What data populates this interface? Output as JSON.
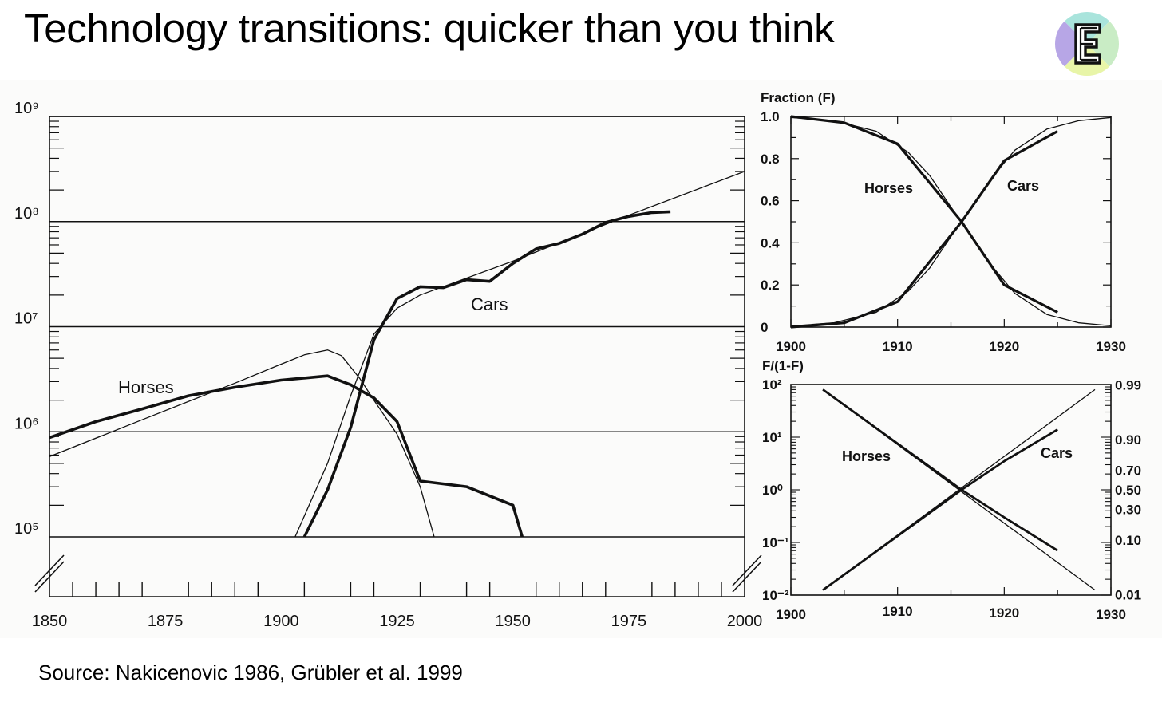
{
  "header": {
    "title": "Technology transitions: quicker than you think"
  },
  "footer": {
    "source": "Source: Nakicenovic 1986, Grübler et al. 1999"
  },
  "logo": {
    "icon": "e-letter-logo-icon",
    "letter": "E",
    "colors": {
      "top": "#a9e4dc",
      "left": "#b7a6e6",
      "right": "#c9ecc5",
      "bottom": "#e8f5a8"
    }
  },
  "chart_data": [
    {
      "type": "line",
      "xlabel": "",
      "ylabel": "",
      "xlim": [
        1850,
        2000
      ],
      "ylim": [
        100000,
        1000000000
      ],
      "yscale": "log",
      "xticks": [
        "1850",
        "1875",
        "1900",
        "1925",
        "1950",
        "1975",
        "2000"
      ],
      "yticks": [
        "10⁹",
        "10⁸",
        "10⁷",
        "10⁶",
        "10⁵"
      ],
      "series": [
        {
          "name": "Horses",
          "style": "data",
          "points": [
            [
              1850,
              880000
            ],
            [
              1860,
              1250000
            ],
            [
              1870,
              1650000
            ],
            [
              1880,
              2200000
            ],
            [
              1890,
              2650000
            ],
            [
              1900,
              3100000
            ],
            [
              1910,
              3400000
            ],
            [
              1915,
              2800000
            ],
            [
              1920,
              2100000
            ],
            [
              1925,
              1250000
            ],
            [
              1930,
              340000
            ],
            [
              1940,
              300000
            ],
            [
              1950,
              200000
            ],
            [
              1952,
              100000
            ]
          ]
        },
        {
          "name": "",
          "style": "fit",
          "points": [
            [
              1850,
              580000
            ],
            [
              1870,
              1300000
            ],
            [
              1890,
              2900000
            ],
            [
              1900,
              4400000
            ],
            [
              1905,
              5400000
            ],
            [
              1910,
              6000000
            ],
            [
              1913,
              5300000
            ],
            [
              1917,
              3200000
            ],
            [
              1920,
              2000000
            ],
            [
              1925,
              950000
            ],
            [
              1930,
              300000
            ],
            [
              1933,
              100000
            ]
          ]
        },
        {
          "name": "Cars",
          "style": "data",
          "points": [
            [
              1905,
              100000
            ],
            [
              1910,
              280000
            ],
            [
              1915,
              1100000
            ],
            [
              1920,
              7500000
            ],
            [
              1925,
              18500000
            ],
            [
              1930,
              24000000
            ],
            [
              1935,
              23500000
            ],
            [
              1940,
              28000000
            ],
            [
              1945,
              27000000
            ],
            [
              1950,
              40000000
            ],
            [
              1955,
              55000000
            ],
            [
              1960,
              62000000
            ],
            [
              1965,
              76000000
            ],
            [
              1970,
              98000000
            ],
            [
              1975,
              112000000
            ],
            [
              1980,
              122000000
            ],
            [
              1984,
              124000000
            ]
          ]
        },
        {
          "name": "",
          "style": "fit",
          "points": [
            [
              1903,
              100000
            ],
            [
              1910,
              500000
            ],
            [
              1915,
              2200000
            ],
            [
              1920,
              8500000
            ],
            [
              1925,
              15000000
            ],
            [
              1930,
              20000000
            ],
            [
              1950,
              42000000
            ],
            [
              1975,
              115000000
            ],
            [
              2000,
              300000000
            ]
          ]
        }
      ]
    },
    {
      "type": "line",
      "title": "Fraction (F)",
      "xlim": [
        1900,
        1930
      ],
      "ylim": [
        0,
        1
      ],
      "xticks": [
        "1900",
        "1910",
        "1920",
        "1930"
      ],
      "yticks": [
        "1.0",
        "0.8",
        "0.6",
        "0.4",
        "0.2",
        "0"
      ],
      "series": [
        {
          "name": "Horses",
          "style": "data",
          "points": [
            [
              1900,
              1.0
            ],
            [
              1905,
              0.97
            ],
            [
              1910,
              0.87
            ],
            [
              1916,
              0.5
            ],
            [
              1920,
              0.2
            ],
            [
              1925,
              0.07
            ]
          ]
        },
        {
          "name": "Cars",
          "style": "data",
          "points": [
            [
              1900,
              0.0
            ],
            [
              1905,
              0.02
            ],
            [
              1910,
              0.12
            ],
            [
              1916,
              0.5
            ],
            [
              1920,
              0.79
            ],
            [
              1925,
              0.93
            ]
          ]
        },
        {
          "name": "",
          "style": "fit",
          "points": [
            [
              1900,
              0.995
            ],
            [
              1904,
              0.98
            ],
            [
              1908,
              0.93
            ],
            [
              1911,
              0.83
            ],
            [
              1913,
              0.72
            ],
            [
              1915,
              0.57
            ],
            [
              1916,
              0.5
            ],
            [
              1917,
              0.43
            ],
            [
              1919,
              0.28
            ],
            [
              1921,
              0.16
            ],
            [
              1924,
              0.06
            ],
            [
              1927,
              0.02
            ],
            [
              1930,
              0.006
            ]
          ]
        },
        {
          "name": "",
          "style": "fit",
          "points": [
            [
              1900,
              0.005
            ],
            [
              1904,
              0.02
            ],
            [
              1908,
              0.07
            ],
            [
              1911,
              0.17
            ],
            [
              1913,
              0.28
            ],
            [
              1915,
              0.43
            ],
            [
              1916,
              0.5
            ],
            [
              1917,
              0.57
            ],
            [
              1919,
              0.72
            ],
            [
              1921,
              0.84
            ],
            [
              1924,
              0.94
            ],
            [
              1927,
              0.98
            ],
            [
              1930,
              0.995
            ]
          ]
        }
      ]
    },
    {
      "type": "line",
      "title": "F/(1-F)",
      "xlim": [
        1900,
        1930
      ],
      "ylim": [
        0.01,
        100
      ],
      "yscale": "log",
      "xticks": [
        "1900",
        "1910",
        "1920",
        "1930"
      ],
      "yticks": [
        "10²",
        "10¹",
        "10⁰",
        "10⁻¹",
        "10⁻²"
      ],
      "yticks_right": [
        "0.99",
        "0.90",
        "0.70",
        "0.50",
        "0.30",
        "0.10",
        "0.01"
      ],
      "yticks_right_values": [
        99,
        9,
        2.333,
        1,
        0.4286,
        0.1111,
        0.0101
      ],
      "series": [
        {
          "name": "Horses",
          "style": "data",
          "points": [
            [
              1903,
              80
            ],
            [
              1916,
              1
            ],
            [
              1920,
              0.3
            ],
            [
              1925,
              0.07
            ]
          ]
        },
        {
          "name": "",
          "style": "fit",
          "points": [
            [
              1903,
              80
            ],
            [
              1928.5,
              0.0125
            ]
          ]
        },
        {
          "name": "Cars",
          "style": "data",
          "points": [
            [
              1903,
              0.0125
            ],
            [
              1916,
              1
            ],
            [
              1920,
              3.5
            ],
            [
              1925,
              14
            ]
          ]
        },
        {
          "name": "",
          "style": "fit",
          "points": [
            [
              1903,
              0.0125
            ],
            [
              1928.5,
              80
            ]
          ]
        }
      ]
    }
  ]
}
